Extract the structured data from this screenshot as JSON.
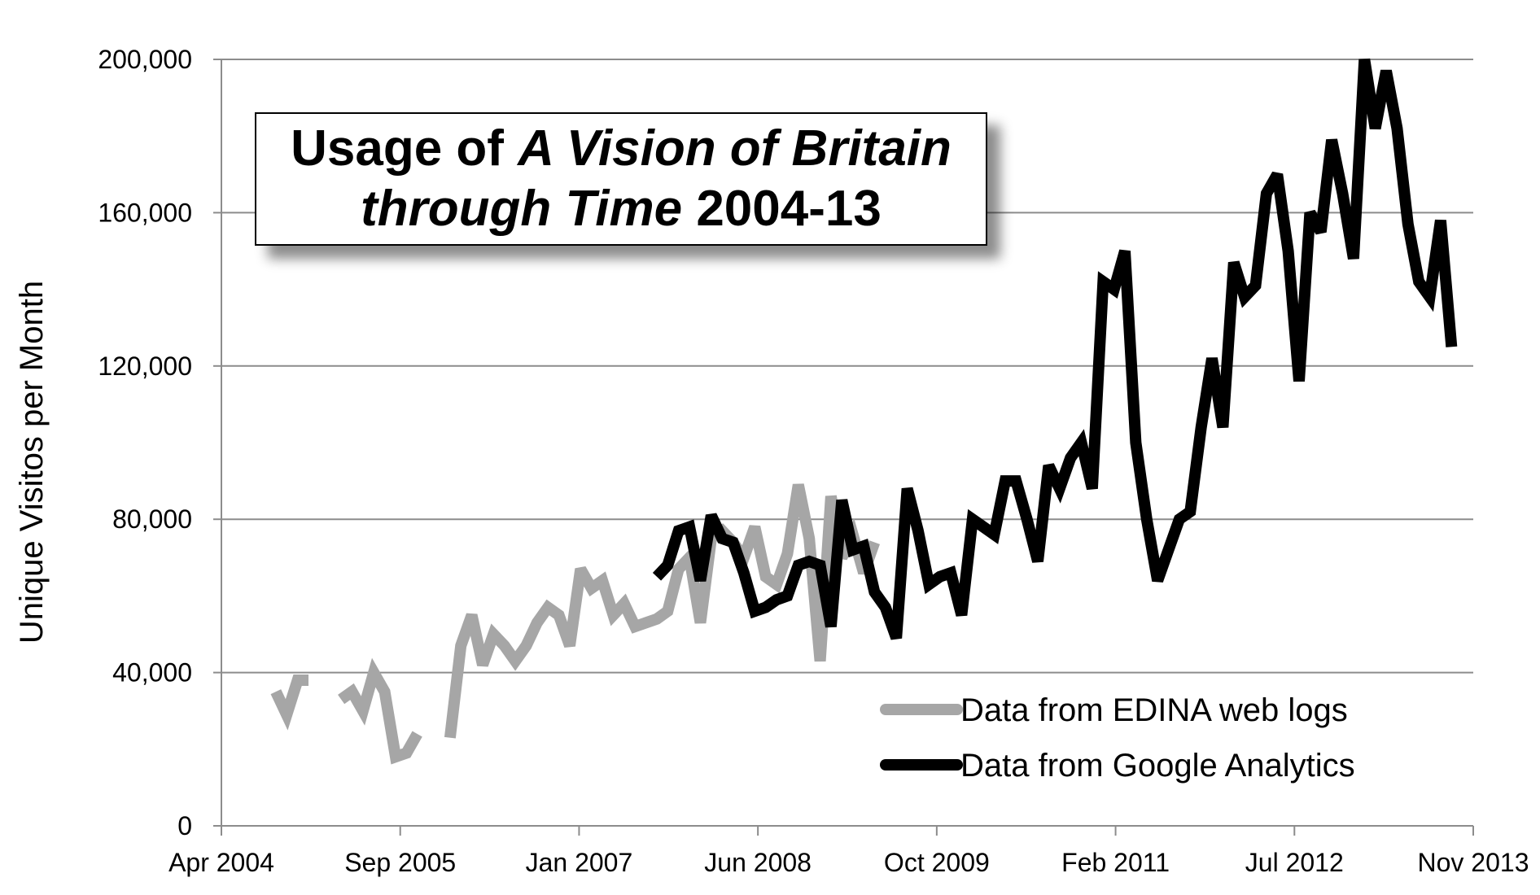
{
  "chart_data": {
    "type": "line",
    "title": {
      "line1_prefix": "Usage of ",
      "line1_italic": "A Vision of Britain",
      "line2_italic": "through Time",
      "line2_suffix": " 2004-13"
    },
    "xlabel": "",
    "ylabel": "Unique Visitos per Month",
    "ylim": [
      0,
      200000
    ],
    "yticks": [
      0,
      40000,
      80000,
      120000,
      160000,
      200000
    ],
    "ytick_labels": [
      "0",
      "40,000",
      "80,000",
      "120,000",
      "160,000",
      "200,000"
    ],
    "xlim": [
      "2004-04",
      "2013-11"
    ],
    "xtick_labels": [
      "Apr 2004",
      "Sep 2005",
      "Jan 2007",
      "Jun 2008",
      "Oct 2009",
      "Feb 2011",
      "Jul 2012",
      "Nov 2013"
    ],
    "grid": "horizontal",
    "legend_position": "bottom-right",
    "series": [
      {
        "name": "Data from EDINA web logs",
        "color": "#a6a6a6",
        "points": [
          [
            "2004-09",
            35000
          ],
          [
            "2004-10",
            29000
          ],
          [
            "2004-11",
            38000
          ],
          [
            "2004-12",
            38000
          ],
          null,
          [
            "2005-03",
            33000
          ],
          [
            "2005-04",
            35000
          ],
          [
            "2005-05",
            30000
          ],
          [
            "2005-06",
            40000
          ],
          [
            "2005-07",
            35000
          ],
          [
            "2005-08",
            18000
          ],
          [
            "2005-09",
            19000
          ],
          [
            "2005-10",
            24000
          ],
          null,
          [
            "2006-01",
            23000
          ],
          [
            "2006-02",
            47000
          ],
          [
            "2006-03",
            55000
          ],
          [
            "2006-04",
            42000
          ],
          [
            "2006-05",
            50000
          ],
          [
            "2006-06",
            47000
          ],
          [
            "2006-07",
            43000
          ],
          [
            "2006-08",
            47000
          ],
          [
            "2006-09",
            53000
          ],
          [
            "2006-10",
            57000
          ],
          [
            "2006-11",
            55000
          ],
          [
            "2006-12",
            47000
          ],
          [
            "2007-01",
            67000
          ],
          [
            "2007-02",
            62000
          ],
          [
            "2007-03",
            64000
          ],
          [
            "2007-04",
            55000
          ],
          [
            "2007-05",
            58000
          ],
          [
            "2007-06",
            52000
          ],
          [
            "2007-07",
            53000
          ],
          [
            "2007-08",
            54000
          ],
          [
            "2007-09",
            56000
          ],
          [
            "2007-10",
            67000
          ],
          [
            "2007-11",
            70000
          ],
          [
            "2007-12",
            53000
          ],
          [
            "2008-01",
            75000
          ],
          [
            "2008-02",
            77000
          ],
          [
            "2008-03",
            74000
          ],
          [
            "2008-04",
            70000
          ],
          [
            "2008-05",
            78000
          ],
          [
            "2008-06",
            65000
          ],
          [
            "2008-07",
            63000
          ],
          [
            "2008-08",
            71000
          ],
          [
            "2008-09",
            89000
          ],
          [
            "2008-10",
            75000
          ],
          [
            "2008-11",
            43000
          ],
          [
            "2008-12",
            86000
          ],
          [
            "2009-01",
            70000
          ],
          [
            "2009-02",
            76000
          ],
          [
            "2009-03",
            66000
          ],
          [
            "2009-04",
            74000
          ]
        ]
      },
      {
        "name": "Data from Google Analytics",
        "color": "#000000",
        "points": [
          [
            "2007-08",
            65000
          ],
          [
            "2007-09",
            68000
          ],
          [
            "2007-10",
            77000
          ],
          [
            "2007-11",
            78000
          ],
          [
            "2007-12",
            64000
          ],
          [
            "2008-01",
            81000
          ],
          [
            "2008-02",
            75000
          ],
          [
            "2008-03",
            74000
          ],
          [
            "2008-04",
            66000
          ],
          [
            "2008-05",
            56000
          ],
          [
            "2008-06",
            57000
          ],
          [
            "2008-07",
            59000
          ],
          [
            "2008-08",
            60000
          ],
          [
            "2008-09",
            68000
          ],
          [
            "2008-10",
            69000
          ],
          [
            "2008-11",
            68000
          ],
          [
            "2008-12",
            52000
          ],
          [
            "2009-01",
            85000
          ],
          [
            "2009-02",
            72000
          ],
          [
            "2009-03",
            73000
          ],
          [
            "2009-04",
            61000
          ],
          [
            "2009-05",
            57000
          ],
          [
            "2009-06",
            49000
          ],
          [
            "2009-07",
            88000
          ],
          [
            "2009-08",
            77000
          ],
          [
            "2009-09",
            63000
          ],
          [
            "2009-10",
            65000
          ],
          [
            "2009-11",
            66000
          ],
          [
            "2009-12",
            55000
          ],
          [
            "2010-01",
            80000
          ],
          [
            "2010-02",
            78000
          ],
          [
            "2010-03",
            76000
          ],
          [
            "2010-04",
            90000
          ],
          [
            "2010-05",
            90000
          ],
          [
            "2010-06",
            80000
          ],
          [
            "2010-07",
            69000
          ],
          [
            "2010-08",
            94000
          ],
          [
            "2010-09",
            88000
          ],
          [
            "2010-10",
            96000
          ],
          [
            "2010-11",
            100000
          ],
          [
            "2010-12",
            88000
          ],
          [
            "2011-01",
            142000
          ],
          [
            "2011-02",
            140000
          ],
          [
            "2011-03",
            150000
          ],
          [
            "2011-04",
            100000
          ],
          [
            "2011-05",
            80000
          ],
          [
            "2011-06",
            64000
          ],
          [
            "2011-07",
            72000
          ],
          [
            "2011-08",
            80000
          ],
          [
            "2011-09",
            82000
          ],
          [
            "2011-10",
            104000
          ],
          [
            "2011-11",
            122000
          ],
          [
            "2011-12",
            104000
          ],
          [
            "2012-01",
            147000
          ],
          [
            "2012-02",
            138000
          ],
          [
            "2012-03",
            141000
          ],
          [
            "2012-04",
            165000
          ],
          [
            "2012-05",
            170000
          ],
          [
            "2012-06",
            150000
          ],
          [
            "2012-07",
            116000
          ],
          [
            "2012-08",
            160000
          ],
          [
            "2012-09",
            155000
          ],
          [
            "2012-10",
            179000
          ],
          [
            "2012-11",
            165000
          ],
          [
            "2012-12",
            148000
          ],
          [
            "2013-01",
            200000
          ],
          [
            "2013-02",
            182000
          ],
          [
            "2013-03",
            197000
          ],
          [
            "2013-04",
            182000
          ],
          [
            "2013-05",
            157000
          ],
          [
            "2013-06",
            142000
          ],
          [
            "2013-07",
            138000
          ],
          [
            "2013-08",
            158000
          ],
          [
            "2013-09",
            125000
          ]
        ]
      }
    ]
  }
}
